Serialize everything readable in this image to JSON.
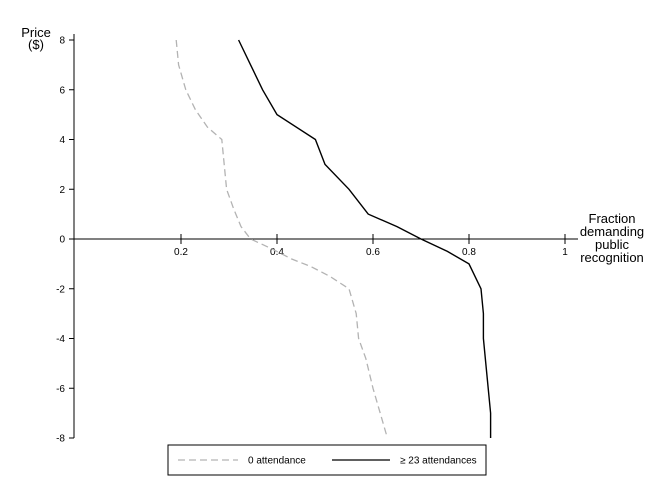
{
  "chart_data": {
    "type": "line",
    "title": "",
    "xlabel": [
      "Fraction",
      "demanding",
      "public",
      "recognition"
    ],
    "ylabel": [
      "Price",
      "($)"
    ],
    "xlim": [
      0,
      1
    ],
    "ylim": [
      -8,
      8
    ],
    "x_ticks": [
      0.2,
      0.4,
      0.6,
      0.8,
      1
    ],
    "x_tick_labels": [
      "0.2",
      "0.4",
      "0.6",
      "0.8",
      "1"
    ],
    "y_ticks": [
      8,
      6,
      4,
      2,
      0,
      -2,
      -4,
      -6,
      -8
    ],
    "y_tick_labels": [
      "8",
      "6",
      "4",
      "2",
      "0",
      "-2",
      "-4",
      "-6",
      "-8"
    ],
    "grid": false,
    "legend_position": "bottom",
    "series": [
      {
        "name": "0 attendance",
        "style": "dashed",
        "color": "#b3b3b3",
        "points": [
          [
            0.19,
            8
          ],
          [
            0.195,
            7
          ],
          [
            0.21,
            6
          ],
          [
            0.23,
            5.2
          ],
          [
            0.255,
            4.5
          ],
          [
            0.285,
            4
          ],
          [
            0.29,
            3
          ],
          [
            0.295,
            2
          ],
          [
            0.31,
            1.2
          ],
          [
            0.325,
            0.5
          ],
          [
            0.345,
            0
          ],
          [
            0.39,
            -0.4
          ],
          [
            0.43,
            -0.8
          ],
          [
            0.47,
            -1.1
          ],
          [
            0.51,
            -1.5
          ],
          [
            0.55,
            -2
          ],
          [
            0.565,
            -3
          ],
          [
            0.57,
            -4
          ],
          [
            0.585,
            -4.8
          ],
          [
            0.6,
            -6
          ],
          [
            0.615,
            -7
          ],
          [
            0.63,
            -8
          ]
        ]
      },
      {
        "name": "≥ 23 attendances",
        "style": "solid",
        "color": "#000000",
        "points": [
          [
            0.32,
            8
          ],
          [
            0.345,
            7
          ],
          [
            0.37,
            6
          ],
          [
            0.4,
            5
          ],
          [
            0.48,
            4
          ],
          [
            0.5,
            3
          ],
          [
            0.55,
            2
          ],
          [
            0.59,
            1
          ],
          [
            0.65,
            0.5
          ],
          [
            0.7,
            0
          ],
          [
            0.755,
            -0.5
          ],
          [
            0.8,
            -1
          ],
          [
            0.825,
            -2
          ],
          [
            0.83,
            -3
          ],
          [
            0.83,
            -4
          ],
          [
            0.835,
            -5
          ],
          [
            0.84,
            -6
          ],
          [
            0.845,
            -7
          ],
          [
            0.845,
            -8
          ]
        ]
      }
    ]
  }
}
